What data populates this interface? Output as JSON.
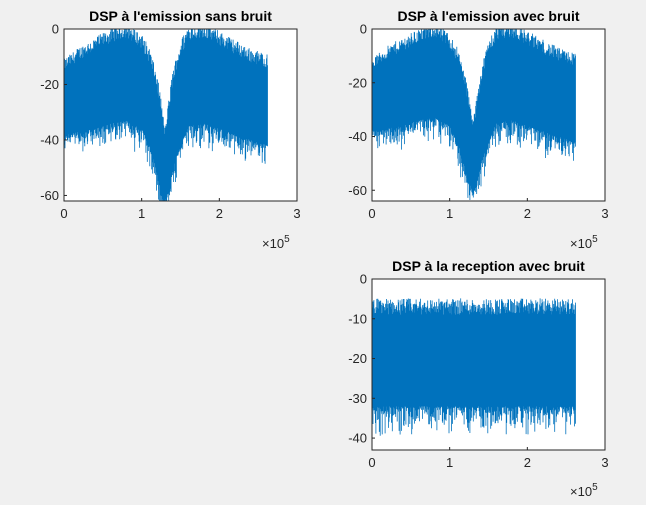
{
  "figure": {
    "background": "#f0f0f0",
    "series_color": "#0072bd"
  },
  "chart_data": [
    {
      "type": "line",
      "title": "DSP à l'emission sans bruit",
      "xlabel": "",
      "ylabel": "",
      "x_multiplier": "×10",
      "x_exponent": "5",
      "xlim": [
        0,
        3
      ],
      "ylim": [
        -62,
        0
      ],
      "xticks": [
        "0",
        "1",
        "2",
        "3"
      ],
      "yticks": [
        "0",
        "-20",
        "-40",
        "-60"
      ],
      "grid": false,
      "series": [
        {
          "x": [
            0,
            0.2,
            0.4,
            0.6,
            0.8,
            1.0,
            1.1,
            1.2,
            1.25,
            1.3,
            1.35,
            1.4,
            1.5,
            1.6,
            1.8,
            2.0,
            2.2,
            2.4,
            2.62
          ],
          "upper": [
            -15,
            -11,
            -8,
            -5,
            -3,
            -7,
            -12,
            -22,
            -30,
            -40,
            -30,
            -20,
            -10,
            -4,
            -3,
            -6,
            -9,
            -12,
            -14
          ],
          "lower": [
            -38,
            -37,
            -36,
            -34,
            -33,
            -36,
            -42,
            -52,
            -58,
            -62,
            -58,
            -50,
            -42,
            -35,
            -34,
            -36,
            -38,
            -40,
            -42
          ]
        }
      ]
    },
    {
      "type": "line",
      "title": "DSP à l'emission avec bruit",
      "xlabel": "",
      "ylabel": "",
      "x_multiplier": "×10",
      "x_exponent": "5",
      "xlim": [
        0,
        3
      ],
      "ylim": [
        -64,
        0
      ],
      "xticks": [
        "0",
        "1",
        "2",
        "3"
      ],
      "yticks": [
        "0",
        "-20",
        "-40",
        "-60"
      ],
      "grid": false,
      "series": [
        {
          "x": [
            0,
            0.2,
            0.4,
            0.6,
            0.8,
            1.0,
            1.1,
            1.2,
            1.25,
            1.3,
            1.35,
            1.4,
            1.5,
            1.6,
            1.8,
            2.0,
            2.2,
            2.4,
            2.62
          ],
          "upper": [
            -15,
            -11,
            -8,
            -5,
            -3,
            -7,
            -12,
            -22,
            -30,
            -38,
            -30,
            -20,
            -10,
            -4,
            -3,
            -6,
            -9,
            -12,
            -14
          ],
          "lower": [
            -38,
            -37,
            -36,
            -34,
            -33,
            -36,
            -42,
            -52,
            -57,
            -61,
            -57,
            -50,
            -42,
            -35,
            -34,
            -36,
            -38,
            -40,
            -42
          ]
        }
      ]
    },
    {
      "type": "line",
      "title": "DSP à la reception avec bruit",
      "xlabel": "",
      "ylabel": "",
      "x_multiplier": "×10",
      "x_exponent": "5",
      "xlim": [
        0,
        3
      ],
      "ylim": [
        -43,
        0
      ],
      "xticks": [
        "0",
        "1",
        "2",
        "3"
      ],
      "yticks": [
        "0",
        "-10",
        "-20",
        "-30",
        "-40"
      ],
      "grid": false,
      "series": [
        {
          "x": [
            0,
            0.5,
            1.0,
            1.5,
            2.0,
            2.5,
            2.62
          ],
          "upper": [
            -9,
            -9,
            -9,
            -9,
            -9,
            -9,
            -9
          ],
          "lower": [
            -32,
            -32,
            -32,
            -32,
            -32,
            -32,
            -32
          ]
        }
      ]
    }
  ]
}
